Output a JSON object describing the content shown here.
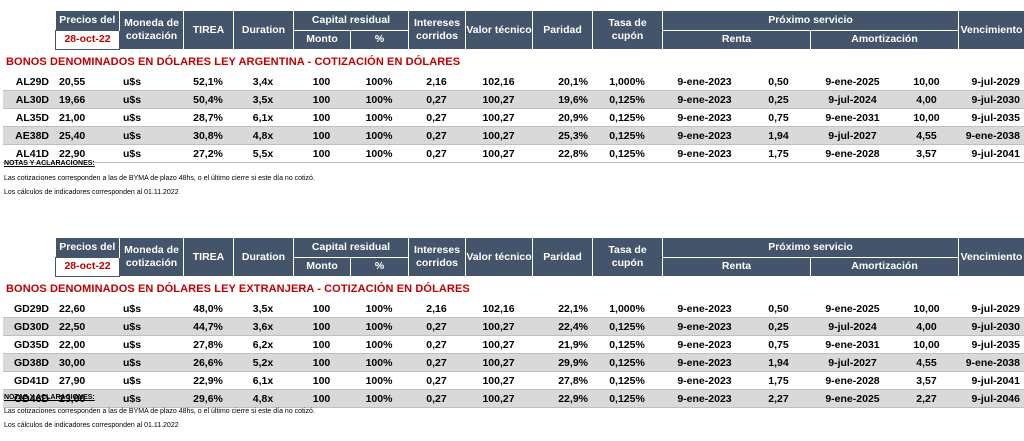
{
  "header": {
    "precios_del": "Precios del",
    "date": "28-oct-22",
    "moneda": "Moneda de cotización",
    "tirea": "TIREA",
    "duration": "Duration",
    "capital_residual": "Capital residual",
    "monto": "Monto",
    "pct": "%",
    "intereses": "Intereses corridos",
    "valor_tecnico": "Valor técnico",
    "paridad": "Paridad",
    "tasa_cupon": "Tasa de cupón",
    "proximo_servicio": "Próximo servicio",
    "renta": "Renta",
    "amortizacion": "Amortización",
    "vencimiento": "Vencimiento"
  },
  "section1": {
    "title": "BONOS DENOMINADOS EN DÓLARES LEY ARGENTINA   -   COTIZACIÓN EN DÓLARES",
    "rows": [
      {
        "ticker": "AL29D",
        "precio": "20,55",
        "moneda": "u$s",
        "tirea": "52,1%",
        "duration": "3,4x",
        "monto": "100",
        "pct": "100%",
        "intereses": "2,16",
        "valor": "102,16",
        "paridad": "20,1%",
        "tasa": "1,000%",
        "renta_fecha": "9-ene-2023",
        "renta_val": "0,50",
        "amort_fecha": "9-ene-2025",
        "amort_val": "10,00",
        "venc": "9-jul-2029"
      },
      {
        "ticker": "AL30D",
        "precio": "19,66",
        "moneda": "u$s",
        "tirea": "50,4%",
        "duration": "3,5x",
        "monto": "100",
        "pct": "100%",
        "intereses": "0,27",
        "valor": "100,27",
        "paridad": "19,6%",
        "tasa": "0,125%",
        "renta_fecha": "9-ene-2023",
        "renta_val": "0,25",
        "amort_fecha": "9-jul-2024",
        "amort_val": "4,00",
        "venc": "9-jul-2030"
      },
      {
        "ticker": "AL35D",
        "precio": "21,00",
        "moneda": "u$s",
        "tirea": "28,7%",
        "duration": "6,1x",
        "monto": "100",
        "pct": "100%",
        "intereses": "0,27",
        "valor": "100,27",
        "paridad": "20,9%",
        "tasa": "0,125%",
        "renta_fecha": "9-ene-2023",
        "renta_val": "0,75",
        "amort_fecha": "9-ene-2031",
        "amort_val": "10,00",
        "venc": "9-jul-2035"
      },
      {
        "ticker": "AE38D",
        "precio": "25,40",
        "moneda": "u$s",
        "tirea": "30,8%",
        "duration": "4,8x",
        "monto": "100",
        "pct": "100%",
        "intereses": "0,27",
        "valor": "100,27",
        "paridad": "25,3%",
        "tasa": "0,125%",
        "renta_fecha": "9-ene-2023",
        "renta_val": "1,94",
        "amort_fecha": "9-jul-2027",
        "amort_val": "4,55",
        "venc": "9-ene-2038"
      },
      {
        "ticker": "AL41D",
        "precio": "22,90",
        "moneda": "u$s",
        "tirea": "27,2%",
        "duration": "5,5x",
        "monto": "100",
        "pct": "100%",
        "intereses": "0,27",
        "valor": "100,27",
        "paridad": "22,8%",
        "tasa": "0,125%",
        "renta_fecha": "9-ene-2023",
        "renta_val": "1,75",
        "amort_fecha": "9-ene-2028",
        "amort_val": "3,57",
        "venc": "9-jul-2041"
      }
    ],
    "notes_title": "NOTAS Y ACLARACIONES:",
    "note1": "Las cotizaciones corresponden a las de BYMA de plazo 48hs, o el último cierre si este día no cotizó.",
    "note2": "Los cálculos de indicadores corresponden al 01.11.2022"
  },
  "section2": {
    "title": "BONOS DENOMINADOS EN DÓLARES LEY EXTRANJERA   -   COTIZACIÓN EN DÓLARES",
    "rows": [
      {
        "ticker": "GD29D",
        "precio": "22,60",
        "moneda": "u$s",
        "tirea": "48,0%",
        "duration": "3,5x",
        "monto": "100",
        "pct": "100%",
        "intereses": "2,16",
        "valor": "102,16",
        "paridad": "22,1%",
        "tasa": "1,000%",
        "renta_fecha": "9-ene-2023",
        "renta_val": "0,50",
        "amort_fecha": "9-ene-2025",
        "amort_val": "10,00",
        "venc": "9-jul-2029"
      },
      {
        "ticker": "GD30D",
        "precio": "22,50",
        "moneda": "u$s",
        "tirea": "44,7%",
        "duration": "3,6x",
        "monto": "100",
        "pct": "100%",
        "intereses": "0,27",
        "valor": "100,27",
        "paridad": "22,4%",
        "tasa": "0,125%",
        "renta_fecha": "9-ene-2023",
        "renta_val": "0,25",
        "amort_fecha": "9-jul-2024",
        "amort_val": "4,00",
        "venc": "9-jul-2030"
      },
      {
        "ticker": "GD35D",
        "precio": "22,00",
        "moneda": "u$s",
        "tirea": "27,8%",
        "duration": "6,2x",
        "monto": "100",
        "pct": "100%",
        "intereses": "0,27",
        "valor": "100,27",
        "paridad": "21,9%",
        "tasa": "0,125%",
        "renta_fecha": "9-ene-2023",
        "renta_val": "0,75",
        "amort_fecha": "9-ene-2031",
        "amort_val": "10,00",
        "venc": "9-jul-2035"
      },
      {
        "ticker": "GD38D",
        "precio": "30,00",
        "moneda": "u$s",
        "tirea": "26,6%",
        "duration": "5,2x",
        "monto": "100",
        "pct": "100%",
        "intereses": "0,27",
        "valor": "100,27",
        "paridad": "29,9%",
        "tasa": "0,125%",
        "renta_fecha": "9-ene-2023",
        "renta_val": "1,94",
        "amort_fecha": "9-jul-2027",
        "amort_val": "4,55",
        "venc": "9-ene-2038"
      },
      {
        "ticker": "GD41D",
        "precio": "27,90",
        "moneda": "u$s",
        "tirea": "22,9%",
        "duration": "6,1x",
        "monto": "100",
        "pct": "100%",
        "intereses": "0,27",
        "valor": "100,27",
        "paridad": "27,8%",
        "tasa": "0,125%",
        "renta_fecha": "9-ene-2023",
        "renta_val": "1,75",
        "amort_fecha": "9-ene-2028",
        "amort_val": "3,57",
        "venc": "9-jul-2041"
      },
      {
        "ticker": "GD46D",
        "precio": "23,00",
        "moneda": "u$s",
        "tirea": "29,6%",
        "duration": "4,8x",
        "monto": "100",
        "pct": "100%",
        "intereses": "0,27",
        "valor": "100,27",
        "paridad": "22,9%",
        "tasa": "0,125%",
        "renta_fecha": "9-ene-2023",
        "renta_val": "2,27",
        "amort_fecha": "9-ene-2025",
        "amort_val": "2,27",
        "venc": "9-jul-2046"
      }
    ],
    "notes_title": "NOTAS Y ACLARACIONES:",
    "note1": "Las cotizaciones corresponden a las de BYMA de plazo 48hs, o el último cierre si este día no cotizó.",
    "note2": "Los cálculos de indicadores corresponden al 01.11.2022"
  },
  "colors": {
    "header_bg": "#44546a",
    "title_red": "#c00000",
    "stripe": "#d9d9d9"
  }
}
